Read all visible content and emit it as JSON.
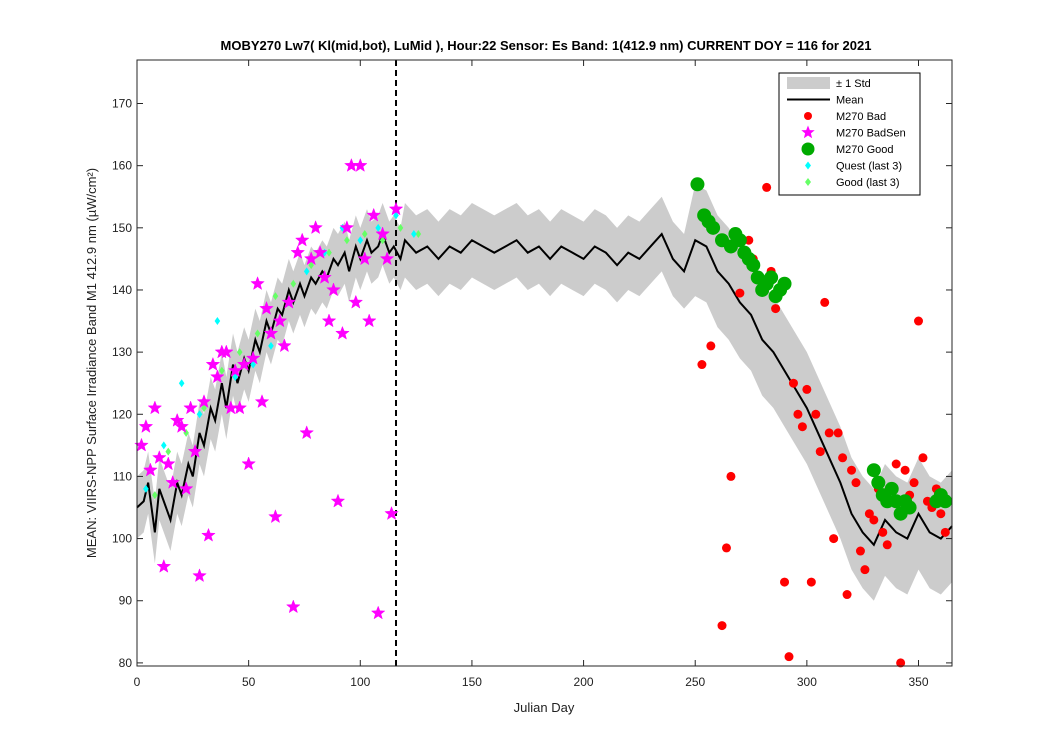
{
  "chart_data": {
    "type": "scatter",
    "title": "MOBY270   Lw7( Kl(mid,bot), LuMid ),   Hour:22 Sensor: Es Band: 1(412.9 nm)   CURRENT DOY = 116 for 2021",
    "xlabel": "Julian Day",
    "ylabel": "MEAN: VIIRS-NPP Surface Irradiance Band M1 412.9 nm (µW/cm²)",
    "xlim": [
      0,
      365
    ],
    "ylim": [
      79.5,
      177
    ],
    "xticks": [
      0,
      50,
      100,
      150,
      200,
      250,
      300,
      350
    ],
    "yticks": [
      80,
      90,
      100,
      110,
      120,
      130,
      140,
      150,
      160,
      170
    ],
    "current_doy": 116,
    "grid": false,
    "legend_position": "top-right",
    "legend": [
      {
        "label": "± 1 Std",
        "symbol": "band",
        "color": "#cccccc"
      },
      {
        "label": "Mean",
        "symbol": "line",
        "color": "#000000"
      },
      {
        "label": "M270 Bad",
        "symbol": "dot",
        "color": "#ff0000"
      },
      {
        "label": "M270 BadSen",
        "symbol": "star",
        "color": "#ff00ff"
      },
      {
        "label": "M270 Good",
        "symbol": "bigdot",
        "color": "#00aa00"
      },
      {
        "label": "Quest (last 3)",
        "symbol": "diamond",
        "color": "#00ffff"
      },
      {
        "label": "Good (last 3)",
        "symbol": "diamond",
        "color": "#66ff66"
      }
    ],
    "series": [
      {
        "name": "Mean",
        "x": [
          0,
          3,
          5,
          8,
          10,
          13,
          15,
          18,
          20,
          23,
          25,
          28,
          30,
          33,
          35,
          38,
          40,
          43,
          45,
          48,
          50,
          53,
          55,
          58,
          60,
          63,
          65,
          68,
          70,
          73,
          75,
          78,
          80,
          83,
          85,
          88,
          90,
          93,
          95,
          98,
          100,
          103,
          105,
          108,
          110,
          113,
          115,
          118,
          120,
          125,
          130,
          135,
          140,
          145,
          150,
          155,
          160,
          165,
          170,
          175,
          180,
          185,
          190,
          195,
          200,
          205,
          210,
          215,
          220,
          225,
          230,
          235,
          240,
          245,
          250,
          255,
          260,
          265,
          270,
          275,
          280,
          285,
          290,
          295,
          300,
          305,
          310,
          315,
          320,
          325,
          330,
          335,
          340,
          345,
          350,
          355,
          360,
          365
        ],
        "y": [
          105,
          106,
          109,
          101,
          108,
          105,
          103,
          109,
          107,
          112,
          110,
          117,
          115,
          121,
          119,
          125,
          121,
          128,
          125,
          129,
          127,
          132,
          130,
          135,
          133,
          137,
          136,
          140,
          138,
          141,
          139,
          142,
          141,
          143,
          142,
          145,
          144,
          146,
          143,
          147,
          145,
          148,
          146,
          147,
          149,
          146,
          147,
          145,
          148,
          146,
          147,
          145,
          147,
          146,
          148,
          147,
          146,
          147,
          148,
          146,
          147,
          145,
          147,
          146,
          145,
          147,
          146,
          144,
          146,
          145,
          147,
          149,
          145,
          143,
          148,
          147,
          143,
          141,
          138,
          136,
          132,
          130,
          127,
          124,
          121,
          117,
          113,
          109,
          104,
          101,
          99,
          103,
          101,
          100,
          104,
          101,
          100,
          102
        ]
      },
      {
        "name": "M270 Bad",
        "x": [
          253,
          257,
          262,
          264,
          266,
          270,
          274,
          276,
          278,
          280,
          282,
          284,
          286,
          290,
          292,
          294,
          296,
          298,
          300,
          302,
          304,
          306,
          308,
          310,
          312,
          314,
          316,
          318,
          320,
          322,
          324,
          326,
          328,
          330,
          332,
          334,
          336,
          338,
          340,
          342,
          344,
          346,
          348,
          350,
          352,
          354,
          356,
          358,
          360,
          362
        ],
        "y": [
          128,
          131,
          86,
          98.5,
          110,
          139.5,
          148,
          145,
          142,
          140,
          156.5,
          143,
          137,
          93,
          81,
          125,
          120,
          118,
          124,
          93,
          120,
          114,
          138,
          117,
          100,
          117,
          113,
          91,
          111,
          109,
          98,
          95,
          104,
          103,
          108,
          101,
          99,
          106,
          112,
          80,
          111,
          107,
          109,
          135,
          113,
          106,
          105,
          108,
          104,
          101
        ]
      },
      {
        "name": "M270 BadSen",
        "x": [
          2,
          4,
          6,
          8,
          10,
          12,
          14,
          16,
          18,
          20,
          22,
          24,
          26,
          28,
          30,
          32,
          34,
          36,
          38,
          40,
          42,
          44,
          46,
          48,
          50,
          52,
          54,
          56,
          58,
          60,
          62,
          64,
          66,
          68,
          70,
          72,
          74,
          76,
          78,
          80,
          82,
          84,
          86,
          88,
          90,
          92,
          94,
          96,
          98,
          100,
          102,
          104,
          106,
          108,
          110,
          112,
          114,
          116
        ],
        "y": [
          115,
          118,
          111,
          121,
          113,
          95.5,
          112,
          109,
          119,
          118,
          108,
          121,
          114,
          94,
          122,
          100.5,
          128,
          126,
          130,
          130,
          121,
          127,
          121,
          128,
          112,
          129,
          141,
          122,
          137,
          133,
          103.5,
          135,
          131,
          138,
          89,
          146,
          148,
          117,
          145,
          150,
          146,
          142,
          135,
          140,
          106,
          133,
          150,
          160,
          138,
          160,
          145,
          135,
          152,
          88,
          149,
          145,
          104,
          153
        ]
      },
      {
        "name": "M270 Good",
        "x": [
          251,
          254,
          256,
          258,
          262,
          266,
          268,
          270,
          272,
          274,
          276,
          278,
          280,
          282,
          284,
          286,
          288,
          290,
          330,
          332,
          334,
          336,
          338,
          340,
          342,
          344,
          346,
          358,
          360,
          362
        ],
        "y": [
          157,
          152,
          151,
          150,
          148,
          147,
          149,
          148,
          146,
          145,
          144,
          142,
          140,
          141,
          142,
          139,
          140,
          141,
          111,
          109,
          107,
          106,
          108,
          106,
          104,
          106,
          105,
          106,
          107,
          106
        ]
      },
      {
        "name": "Quest (last 3)",
        "x": [
          4,
          12,
          20,
          28,
          36,
          44,
          52,
          60,
          68,
          76,
          84,
          92,
          100,
          108,
          116,
          124
        ],
        "y": [
          108,
          115,
          125,
          120,
          135,
          126,
          128,
          131,
          138,
          143,
          146,
          150,
          148,
          150,
          152,
          149
        ]
      },
      {
        "name": "Good (last 3)",
        "x": [
          8,
          14,
          22,
          30,
          38,
          46,
          54,
          62,
          70,
          78,
          86,
          94,
          102,
          110,
          118,
          126
        ],
        "y": [
          107,
          114,
          117,
          121,
          127,
          130,
          133,
          139,
          141,
          144,
          146,
          148,
          149,
          148,
          150,
          149
        ]
      }
    ]
  }
}
